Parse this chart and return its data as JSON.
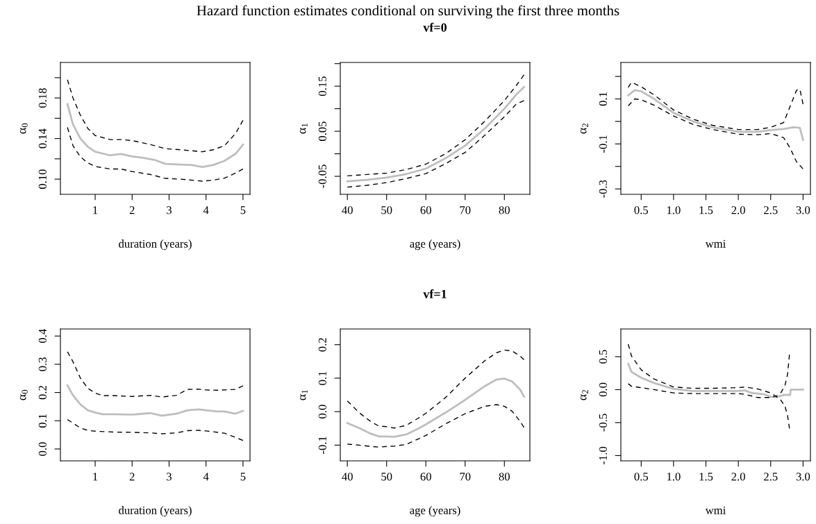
{
  "chart_data": [
    {
      "type": "line",
      "xlabel": "duration (years)",
      "ylabel": "α$_{0}$",
      "xlim": [
        0.06,
        5.19
      ],
      "ylim": [
        0.085,
        0.215
      ],
      "xticks": [
        1,
        2,
        3,
        4,
        5
      ],
      "yticks": [
        {
          "value": 0.1,
          "label": "0.10"
        },
        {
          "value": 0.12,
          "label": null
        },
        {
          "value": 0.14,
          "label": "0.14"
        },
        {
          "value": 0.16,
          "label": null
        },
        {
          "value": 0.18,
          "label": "0.18"
        },
        {
          "value": 0.2,
          "label": null
        }
      ],
      "series": [
        {
          "color": "#000000",
          "line_style": "dashed",
          "x": [
            0.25,
            0.4,
            0.6,
            0.8,
            1.0,
            1.4,
            1.7,
            2.0,
            2.5,
            2.9,
            3.3,
            3.9,
            4.2,
            4.5,
            4.8,
            5.0
          ],
          "values": [
            0.198,
            0.18,
            0.163,
            0.15,
            0.143,
            0.139,
            0.139,
            0.138,
            0.134,
            0.13,
            0.129,
            0.127,
            0.129,
            0.133,
            0.145,
            0.158
          ]
        },
        {
          "color": "#bebebe",
          "line_style": "solid",
          "x": [
            0.25,
            0.4,
            0.6,
            0.8,
            1.0,
            1.4,
            1.7,
            2.0,
            2.3,
            2.6,
            2.9,
            3.3,
            3.6,
            3.9,
            4.2,
            4.5,
            4.8,
            5.0
          ],
          "values": [
            0.174,
            0.154,
            0.14,
            0.132,
            0.127,
            0.1235,
            0.1247,
            0.1224,
            0.121,
            0.119,
            0.115,
            0.1144,
            0.114,
            0.112,
            0.114,
            0.118,
            0.125,
            0.134
          ]
        },
        {
          "color": "#000000",
          "line_style": "dashed",
          "x": [
            0.25,
            0.4,
            0.6,
            0.8,
            1.0,
            1.4,
            1.7,
            2.0,
            2.5,
            2.9,
            3.3,
            3.9,
            4.2,
            4.5,
            4.8,
            5.0
          ],
          "values": [
            0.151,
            0.133,
            0.122,
            0.116,
            0.1125,
            0.11,
            0.11,
            0.1075,
            0.1045,
            0.1007,
            0.1,
            0.098,
            0.099,
            0.101,
            0.106,
            0.11
          ]
        }
      ]
    },
    {
      "type": "line",
      "title": "Hazard function estimates conditional on surviving the first three months",
      "subtitle": "vf=0",
      "xlabel": "age (years)",
      "ylabel": "α$_{1}$",
      "xlim": [
        38.2,
        86.5
      ],
      "ylim": [
        -0.09,
        0.2026
      ],
      "xticks": [
        40,
        50,
        60,
        70,
        80
      ],
      "yticks": [
        {
          "value": -0.05,
          "label": "-0.05"
        },
        {
          "value": 0,
          "label": null
        },
        {
          "value": 0.05,
          "label": "0.05"
        },
        {
          "value": 0.1,
          "label": null
        },
        {
          "value": 0.15,
          "label": "0.15"
        },
        {
          "value": 0.2,
          "label": null
        }
      ],
      "series": [
        {
          "color": "#000000",
          "line_style": "dashed",
          "x": [
            40,
            45,
            50,
            55,
            60,
            65,
            70,
            75,
            80,
            83,
            85
          ],
          "values": [
            -0.049,
            -0.046,
            -0.043,
            -0.035,
            -0.023,
            0.0,
            0.031,
            0.072,
            0.118,
            0.151,
            0.175
          ]
        },
        {
          "color": "#bebebe",
          "line_style": "solid",
          "x": [
            40,
            45,
            50,
            55,
            60,
            65,
            70,
            75,
            80,
            83,
            85
          ],
          "values": [
            -0.061,
            -0.058,
            -0.053,
            -0.045,
            -0.033,
            -0.01,
            0.018,
            0.056,
            0.1,
            0.131,
            0.148
          ]
        },
        {
          "color": "#000000",
          "line_style": "dashed",
          "x": [
            40,
            45,
            50,
            55,
            60,
            65,
            70,
            75,
            80,
            83,
            85
          ],
          "values": [
            -0.074,
            -0.07,
            -0.064,
            -0.055,
            -0.044,
            -0.022,
            0.003,
            0.041,
            0.082,
            0.11,
            0.118
          ]
        }
      ]
    },
    {
      "type": "line",
      "xlabel": "wmi",
      "ylabel": "α$_{2}$",
      "xlim": [
        0.186,
        3.114
      ],
      "ylim": [
        -0.324,
        0.262
      ],
      "xticks": [
        {
          "value": 0.5,
          "label": "0.5"
        },
        {
          "value": 1,
          "label": "1.0"
        },
        {
          "value": 1.5,
          "label": "1.5"
        },
        {
          "value": 2,
          "label": "2.0"
        },
        {
          "value": 2.5,
          "label": "2.5"
        },
        {
          "value": 3,
          "label": "3.0"
        }
      ],
      "yticks": [
        {
          "value": -0.3,
          "label": "-0.3"
        },
        {
          "value": -0.2,
          "label": null
        },
        {
          "value": -0.1,
          "label": "-0.1"
        },
        {
          "value": 0,
          "label": null
        },
        {
          "value": 0.1,
          "label": "0.1"
        },
        {
          "value": 0.2,
          "label": null
        }
      ],
      "series": [
        {
          "color": "#000000",
          "line_style": "dashed",
          "x": [
            0.3,
            0.35,
            0.5,
            0.7,
            1.0,
            1.3,
            1.6,
            2.0,
            2.3,
            2.5,
            2.7,
            2.8,
            2.9,
            2.95,
            3.0
          ],
          "values": [
            0.151,
            0.174,
            0.154,
            0.118,
            0.051,
            0.01,
            -0.017,
            -0.036,
            -0.036,
            -0.026,
            -0.005,
            0.067,
            0.139,
            0.144,
            0.077
          ]
        },
        {
          "color": "#bebebe",
          "line_style": "solid",
          "x": [
            0.3,
            0.4,
            0.5,
            0.7,
            1.0,
            1.3,
            1.6,
            2.0,
            2.3,
            2.5,
            2.7,
            2.85,
            2.95,
            3.0
          ],
          "values": [
            0.116,
            0.139,
            0.134,
            0.1,
            0.038,
            0.0,
            -0.026,
            -0.046,
            -0.046,
            -0.038,
            -0.034,
            -0.026,
            -0.028,
            -0.082
          ]
        },
        {
          "color": "#000000",
          "line_style": "dashed",
          "x": [
            0.3,
            0.4,
            0.5,
            0.7,
            1.0,
            1.3,
            1.6,
            2.0,
            2.3,
            2.5,
            2.7,
            2.8,
            2.9,
            3.0
          ],
          "values": [
            0.069,
            0.1,
            0.096,
            0.072,
            0.024,
            -0.013,
            -0.036,
            -0.057,
            -0.059,
            -0.054,
            -0.072,
            -0.118,
            -0.18,
            -0.211
          ]
        }
      ]
    },
    {
      "type": "line",
      "xlabel": "duration (years)",
      "ylabel": "α$_{0}$",
      "xlim": [
        0.06,
        5.19
      ],
      "ylim": [
        -0.042,
        0.425
      ],
      "xticks": [
        1,
        2,
        3,
        4,
        5
      ],
      "yticks": [
        {
          "value": 0,
          "label": "0.0"
        },
        {
          "value": 0.1,
          "label": "0.1"
        },
        {
          "value": 0.2,
          "label": "0.2"
        },
        {
          "value": 0.3,
          "label": "0.3"
        },
        {
          "value": 0.4,
          "label": "0.4"
        }
      ],
      "series": [
        {
          "color": "#000000",
          "line_style": "dashed",
          "x": [
            0.25,
            0.4,
            0.6,
            0.8,
            1.0,
            1.2,
            1.5,
            2.0,
            2.5,
            2.8,
            3.2,
            3.5,
            3.8,
            4.0,
            4.3,
            4.8,
            5.0
          ],
          "values": [
            0.344,
            0.309,
            0.251,
            0.215,
            0.198,
            0.189,
            0.189,
            0.186,
            0.19,
            0.184,
            0.19,
            0.211,
            0.212,
            0.209,
            0.208,
            0.211,
            0.224
          ]
        },
        {
          "color": "#bebebe",
          "line_style": "solid",
          "x": [
            0.25,
            0.4,
            0.6,
            0.8,
            1.0,
            1.2,
            1.5,
            2.0,
            2.5,
            2.8,
            3.2,
            3.5,
            3.8,
            4.0,
            4.3,
            4.5,
            4.8,
            5.0
          ],
          "values": [
            0.225,
            0.19,
            0.158,
            0.137,
            0.129,
            0.123,
            0.123,
            0.122,
            0.127,
            0.118,
            0.125,
            0.137,
            0.14,
            0.137,
            0.133,
            0.133,
            0.125,
            0.135
          ]
        },
        {
          "color": "#000000",
          "line_style": "dashed",
          "x": [
            0.25,
            0.4,
            0.6,
            0.8,
            1.0,
            1.5,
            2.0,
            2.5,
            2.8,
            3.2,
            3.5,
            3.8,
            4.0,
            4.5,
            4.8,
            5.0
          ],
          "values": [
            0.104,
            0.092,
            0.074,
            0.066,
            0.063,
            0.06,
            0.059,
            0.057,
            0.054,
            0.057,
            0.065,
            0.066,
            0.064,
            0.056,
            0.041,
            0.03
          ]
        }
      ]
    },
    {
      "type": "line",
      "subtitle": "vf=1",
      "xlabel": "age (years)",
      "ylabel": "α$_{1}$",
      "xlim": [
        38.2,
        86.5
      ],
      "ylim": [
        -0.147,
        0.247
      ],
      "xticks": [
        40,
        50,
        60,
        70,
        80
      ],
      "yticks": [
        {
          "value": -0.1,
          "label": "-0.1"
        },
        {
          "value": 0,
          "label": "0.0"
        },
        {
          "value": 0.1,
          "label": "0.1"
        },
        {
          "value": 0.2,
          "label": "0.2"
        }
      ],
      "series": [
        {
          "color": "#000000",
          "line_style": "dashed",
          "x": [
            40,
            43,
            46,
            48,
            50,
            52,
            55,
            58,
            60,
            65,
            70,
            75,
            78,
            80,
            82,
            84,
            85
          ],
          "values": [
            0.032,
            -0.003,
            -0.03,
            -0.043,
            -0.045,
            -0.049,
            -0.041,
            -0.02,
            -0.005,
            0.042,
            0.1,
            0.152,
            0.176,
            0.184,
            0.181,
            0.166,
            0.155
          ]
        },
        {
          "color": "#bebebe",
          "line_style": "solid",
          "x": [
            40,
            43,
            46,
            48,
            50,
            52,
            55,
            58,
            60,
            65,
            70,
            75,
            78,
            80,
            82,
            84,
            85
          ],
          "values": [
            -0.034,
            -0.049,
            -0.066,
            -0.074,
            -0.074,
            -0.075,
            -0.068,
            -0.051,
            -0.038,
            -0.003,
            0.035,
            0.076,
            0.096,
            0.099,
            0.09,
            0.066,
            0.045
          ]
        },
        {
          "color": "#000000",
          "line_style": "dashed",
          "x": [
            40,
            43,
            46,
            48,
            50,
            52,
            55,
            58,
            60,
            65,
            70,
            75,
            78,
            80,
            82,
            84,
            85
          ],
          "values": [
            -0.097,
            -0.1,
            -0.104,
            -0.106,
            -0.104,
            -0.103,
            -0.098,
            -0.082,
            -0.071,
            -0.037,
            -0.006,
            0.016,
            0.021,
            0.016,
            0.001,
            -0.029,
            -0.047
          ]
        }
      ]
    },
    {
      "type": "line",
      "xlabel": "wmi",
      "ylabel": "α$_{2}$",
      "xlim": [
        0.186,
        3.114
      ],
      "ylim": [
        -1.08,
        0.92
      ],
      "xticks": [
        {
          "value": 0.5,
          "label": "0.5"
        },
        {
          "value": 1,
          "label": "1.0"
        },
        {
          "value": 1.5,
          "label": "1.5"
        },
        {
          "value": 2,
          "label": "2.0"
        },
        {
          "value": 2.5,
          "label": "2.5"
        },
        {
          "value": 3,
          "label": "3.0"
        }
      ],
      "yticks": [
        {
          "value": -1,
          "label": "-1.0"
        },
        {
          "value": -0.5,
          "label": "-0.5"
        },
        {
          "value": 0,
          "label": "0.0"
        },
        {
          "value": 0.5,
          "label": "0.5"
        }
      ],
      "series": [
        {
          "color": "#000000",
          "line_style": "dashed",
          "x": [
            0.3,
            0.35,
            0.5,
            0.7,
            1.0,
            1.3,
            1.6,
            2.0,
            2.1,
            2.3,
            2.5,
            2.58,
            2.65,
            2.72,
            2.76,
            2.79
          ],
          "values": [
            0.69,
            0.51,
            0.3,
            0.16,
            0.04,
            0.02,
            0.02,
            0.03,
            0.04,
            0.01,
            -0.05,
            -0.1,
            -0.06,
            0.06,
            0.23,
            0.53
          ]
        },
        {
          "color": "#bebebe",
          "line_style": "solid",
          "x": [
            0.3,
            0.35,
            0.5,
            0.7,
            1.0,
            1.3,
            1.6,
            2.0,
            2.1,
            2.2,
            2.4,
            2.5,
            2.6,
            2.7,
            2.8,
            2.81,
            3.0
          ],
          "values": [
            0.39,
            0.27,
            0.18,
            0.1,
            0.01,
            -0.02,
            -0.02,
            -0.02,
            -0.01,
            -0.05,
            -0.07,
            -0.11,
            -0.11,
            -0.08,
            -0.08,
            0,
            0
          ]
        },
        {
          "color": "#000000",
          "line_style": "dashed",
          "x": [
            0.3,
            0.35,
            0.5,
            0.7,
            1.0,
            1.3,
            1.6,
            2.0,
            2.1,
            2.3,
            2.5,
            2.58,
            2.65,
            2.72,
            2.76,
            2.79
          ],
          "values": [
            0.09,
            0.05,
            0.03,
            0.0,
            -0.05,
            -0.06,
            -0.06,
            -0.06,
            -0.07,
            -0.12,
            -0.12,
            -0.1,
            -0.15,
            -0.25,
            -0.39,
            -0.59
          ]
        }
      ]
    }
  ]
}
